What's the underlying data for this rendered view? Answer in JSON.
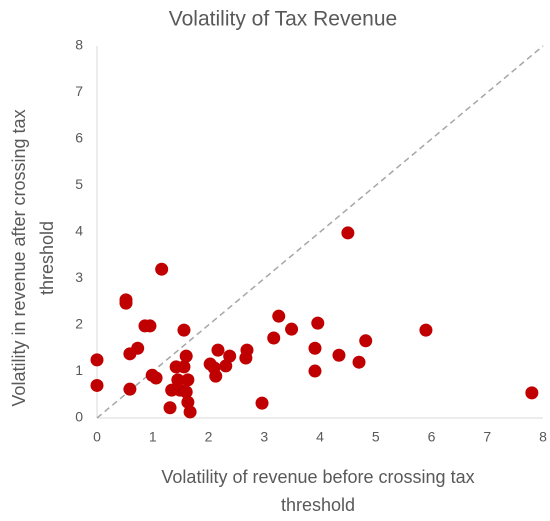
{
  "chart_data": {
    "type": "scatter",
    "title": "Volatility of Tax Revenue",
    "xlabel": [
      "Volatility of revenue before crossing tax",
      "threshold"
    ],
    "ylabel": [
      "Volatility in revenue after crossing tax",
      "threshold"
    ],
    "color": "#c00000",
    "xlim": [
      0,
      8
    ],
    "ylim": [
      0,
      8
    ],
    "xticks": [
      0,
      1,
      2,
      3,
      4,
      5,
      6,
      7,
      8
    ],
    "yticks": [
      0,
      1,
      2,
      3,
      4,
      5,
      6,
      7,
      8
    ],
    "x": [
      0,
      0,
      0.52,
      0.52,
      0.59,
      0.59,
      0.73,
      0.86,
      0.95,
      0.99,
      1.06,
      1.16,
      1.31,
      1.34,
      1.42,
      1.45,
      1.49,
      1.56,
      1.56,
      1.6,
      1.6,
      1.63,
      1.63,
      1.67,
      2.03,
      2.1,
      2.13,
      2.17,
      2.31,
      2.38,
      2.67,
      2.69,
      2.96,
      3.17,
      3.26,
      3.49,
      3.91,
      3.91,
      3.96,
      4.34,
      4.5,
      4.7,
      4.82,
      5.9,
      7.8
    ],
    "values": [
      1.25,
      0.7,
      2.47,
      2.54,
      1.38,
      0.62,
      1.5,
      1.98,
      1.98,
      0.92,
      0.86,
      3.2,
      0.22,
      0.6,
      1.1,
      0.82,
      0.6,
      1.89,
      1.1,
      1.33,
      0.56,
      0.82,
      0.34,
      0.13,
      1.16,
      1.08,
      0.9,
      1.46,
      1.12,
      1.33,
      1.29,
      1.46,
      0.32,
      1.72,
      2.19,
      1.91,
      1.01,
      1.5,
      2.04,
      1.35,
      3.98,
      1.2,
      1.66,
      1.89,
      0.54
    ]
  }
}
